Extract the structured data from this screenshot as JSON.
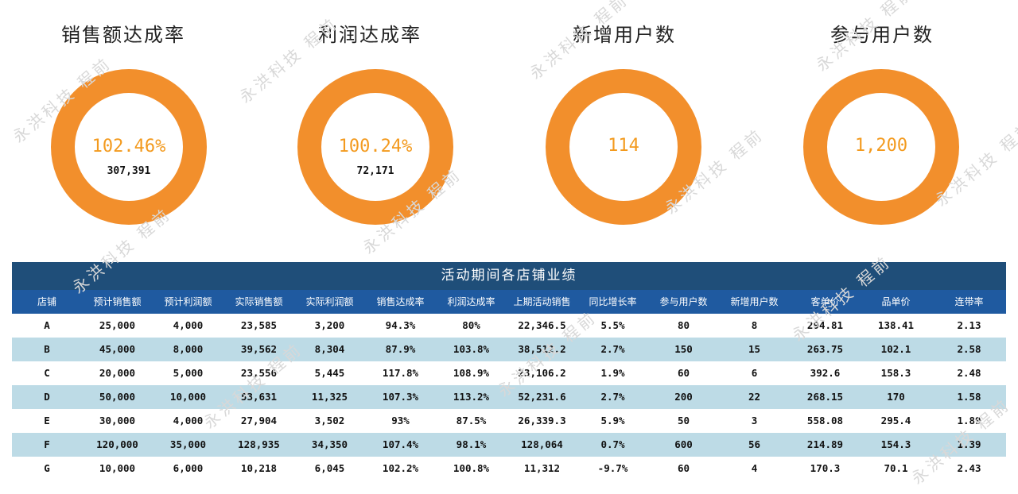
{
  "kpis": [
    {
      "title": "销售额达成率",
      "value": "102.46%",
      "sub": "307,391"
    },
    {
      "title": "利润达成率",
      "value": "100.24%",
      "sub": "72,171"
    },
    {
      "title": "新增用户数",
      "value": "114",
      "sub": ""
    },
    {
      "title": "参与用户数",
      "value": "1,200",
      "sub": ""
    }
  ],
  "table": {
    "title": "活动期间各店铺业绩",
    "headers": [
      "店铺",
      "预计销售额",
      "预计利润额",
      "实际销售额",
      "实际利润额",
      "销售达成率",
      "利润达成率",
      "上期活动销售",
      "同比增长率",
      "参与用户数",
      "新增用户数",
      "客单价",
      "品单价",
      "连带率"
    ],
    "rows": [
      [
        "A",
        "25,000",
        "4,000",
        "23,585",
        "3,200",
        "94.3%",
        "80%",
        "22,346.5",
        "5.5%",
        "80",
        "8",
        "294.81",
        "138.41",
        "2.13"
      ],
      [
        "B",
        "45,000",
        "8,000",
        "39,562",
        "8,304",
        "87.9%",
        "103.8%",
        "38,512.2",
        "2.7%",
        "150",
        "15",
        "263.75",
        "102.1",
        "2.58"
      ],
      [
        "C",
        "20,000",
        "5,000",
        "23,556",
        "5,445",
        "117.8%",
        "108.9%",
        "23,106.2",
        "1.9%",
        "60",
        "6",
        "392.6",
        "158.3",
        "2.48"
      ],
      [
        "D",
        "50,000",
        "10,000",
        "53,631",
        "11,325",
        "107.3%",
        "113.2%",
        "52,231.6",
        "2.7%",
        "200",
        "22",
        "268.15",
        "170",
        "1.58"
      ],
      [
        "E",
        "30,000",
        "4,000",
        "27,904",
        "3,502",
        "93%",
        "87.5%",
        "26,339.3",
        "5.9%",
        "50",
        "3",
        "558.08",
        "295.4",
        "1.89"
      ],
      [
        "F",
        "120,000",
        "35,000",
        "128,935",
        "34,350",
        "107.4%",
        "98.1%",
        "128,064",
        "0.7%",
        "600",
        "56",
        "214.89",
        "154.3",
        "1.39"
      ],
      [
        "G",
        "10,000",
        "6,000",
        "10,218",
        "6,045",
        "102.2%",
        "100.8%",
        "11,312",
        "-9.7%",
        "60",
        "4",
        "170.3",
        "70.1",
        "2.43"
      ]
    ]
  },
  "watermark": "永洪科技 程前",
  "colors": {
    "ring": "#f28f2c",
    "value": "#f39a1e",
    "title_bar": "#1f4e79",
    "header": "#1f5aa0",
    "alt_row": "#bddbe6"
  }
}
